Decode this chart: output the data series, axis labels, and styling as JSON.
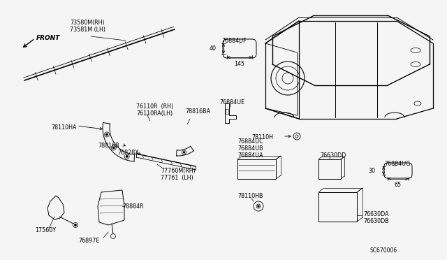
{
  "bg_color": "#f5f5f5",
  "diagram_code": "SC670006",
  "labels": {
    "front": "FRONT",
    "part1a": "73580M(RH)",
    "part1b": "73581M (LH)",
    "part2a": "76110R  (RH)",
    "part2b": "76110RA(LH)",
    "part3": "78110HA",
    "part4": "78816BA",
    "part5": "78816B",
    "part6": "76828X",
    "part7a": "77760M(RH)",
    "part7b": "77761  (LH)",
    "part8": "17560Y",
    "part9": "78884R",
    "part10": "76897E",
    "part11": "76884UF",
    "part12": "76884UE",
    "part13": "78110H",
    "part14a": "76884UA",
    "part14b": "76884UB",
    "part14c": "76884UC",
    "part15": "76630DD",
    "part16": "76884UG",
    "part17": "78110HB",
    "part18a": "76630DA",
    "part18b": "76630DB",
    "dim1_w": "145",
    "dim1_h": "40",
    "dim2_w": "65",
    "dim2_h": "30"
  }
}
